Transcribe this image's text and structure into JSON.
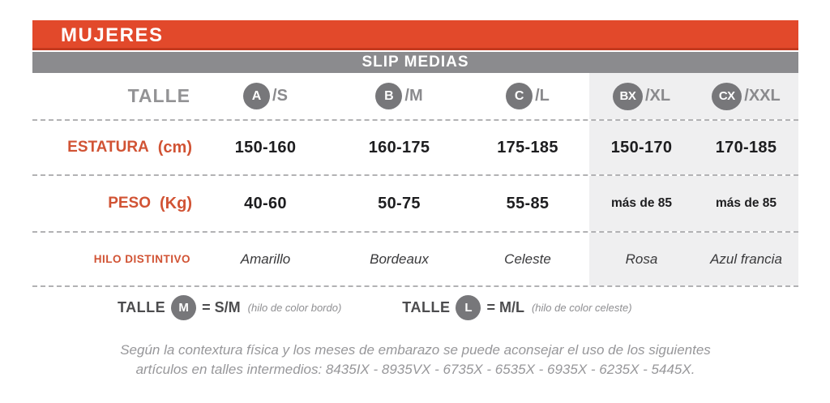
{
  "colors": {
    "accent_orange": "#e2492b",
    "label_orange": "#d15334",
    "bar_gray": "#8b8b8e",
    "badge_gray": "#77777a",
    "shaded_column_bg": "#efeff0",
    "value_black": "#1d1d1f"
  },
  "header": {
    "title": "MUJERES",
    "subtitle": "SLIP MEDIAS"
  },
  "table": {
    "corner_label": "TALLE",
    "columns": [
      {
        "badge": "A",
        "suffix": "/S"
      },
      {
        "badge": "B",
        "suffix": "/M"
      },
      {
        "badge": "C",
        "suffix": "/L"
      },
      {
        "badge": "BX",
        "suffix": "/XL"
      },
      {
        "badge": "CX",
        "suffix": "/XXL"
      }
    ],
    "rows": [
      {
        "label": "ESTATURA",
        "unit": "(cm)",
        "values": [
          "150-160",
          "160-175",
          "175-185",
          "150-170",
          "170-185"
        ]
      },
      {
        "label": "PESO",
        "unit": "(Kg)",
        "values": [
          "40-60",
          "50-75",
          "55-85",
          "más de 85",
          "más de 85"
        ]
      },
      {
        "label": "HILO DISTINTIVO",
        "unit": "",
        "values": [
          "Amarillo",
          "Bordeaux",
          "Celeste",
          "Rosa",
          "Azul francia"
        ]
      }
    ]
  },
  "legend": [
    {
      "prefix": "TALLE",
      "badge": "M",
      "equals": "= S/M",
      "note": "(hilo de color bordo)"
    },
    {
      "prefix": "TALLE",
      "badge": "L",
      "equals": "= M/L",
      "note": "(hilo de color celeste)"
    }
  ],
  "footer": {
    "line1": "Según la contextura física y los meses de embarazo se puede aconsejar el uso de los siguientes",
    "line2": "artículos en talles intermedios: 8435IX - 8935VX - 6735X - 6535X - 6935X - 6235X - 5445X."
  }
}
